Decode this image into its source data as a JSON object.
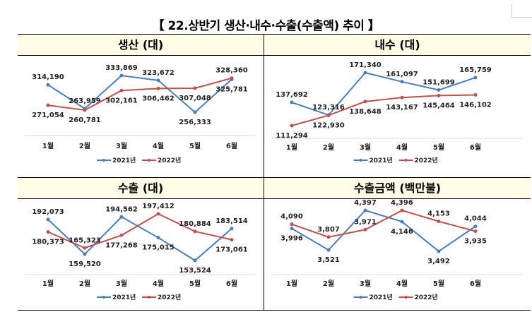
{
  "title": "【 22.상반기 생산·내수·수출(수출액) 추이 】",
  "colors": {
    "header_bg": "#fffde6",
    "series_2021": "#4a7ebb",
    "series_2022": "#c0504d"
  },
  "chart_data": [
    {
      "type": "line",
      "title": "생산 (대)",
      "categories": [
        "1월",
        "2월",
        "3월",
        "4월",
        "5월",
        "6월"
      ],
      "series": [
        {
          "name": "2021년",
          "values": [
            314190,
            263959,
            333869,
            323672,
            256333,
            325781
          ],
          "labels": [
            "314,190",
            "263,959",
            "333,869",
            "323,672",
            "256,333",
            "325,781"
          ]
        },
        {
          "name": "2022년",
          "values": [
            271054,
            260781,
            302161,
            306462,
            307048,
            328360
          ],
          "labels": [
            "271,054",
            "260,781",
            "302,161",
            "306,462",
            "307,048",
            "328,360"
          ]
        }
      ],
      "legend": "bottom",
      "grid": false
    },
    {
      "type": "line",
      "title": "내수 (대)",
      "categories": [
        "1월",
        "2월",
        "3월",
        "4월",
        "5월",
        "6월"
      ],
      "series": [
        {
          "name": "2021년",
          "values": [
            137692,
            123316,
            171340,
            161097,
            151699,
            165759
          ],
          "labels": [
            "137,692",
            "123,316",
            "171,340",
            "161,097",
            "151,699",
            "165,759"
          ]
        },
        {
          "name": "2022년",
          "values": [
            111294,
            122930,
            138648,
            143167,
            145464,
            146102
          ],
          "labels": [
            "111,294",
            "122,930",
            "138,648",
            "143,167",
            "145,464",
            "146,102"
          ]
        }
      ],
      "legend": "bottom",
      "grid": false
    },
    {
      "type": "line",
      "title": "수출 (대)",
      "categories": [
        "1월",
        "2월",
        "3월",
        "4월",
        "5월",
        "6월"
      ],
      "series": [
        {
          "name": "2021년",
          "values": [
            192073,
            159520,
            194562,
            175015,
            153524,
            183514
          ],
          "labels": [
            "192,073",
            "159,520",
            "194,562",
            "175,015",
            "153,524",
            "183,514"
          ]
        },
        {
          "name": "2022년",
          "values": [
            180373,
            165323,
            177268,
            197412,
            180884,
            173061
          ],
          "labels": [
            "180,373",
            "165,323",
            "177,268",
            "197,412",
            "180,884",
            "173,061"
          ]
        }
      ],
      "legend": "bottom",
      "grid": false
    },
    {
      "type": "line",
      "title": "수출금액 (백만불)",
      "categories": [
        "1월",
        "2월",
        "3월",
        "4월",
        "5월",
        "6월"
      ],
      "series": [
        {
          "name": "2021년",
          "values": [
            3996,
            3521,
            4397,
            4146,
            3492,
            4044
          ],
          "labels": [
            "3,996",
            "3,521",
            "4,397",
            "4,146",
            "3,492",
            "4,044"
          ]
        },
        {
          "name": "2022년",
          "values": [
            4090,
            3807,
            3971,
            4396,
            4153,
            3935
          ],
          "labels": [
            "4,090",
            "3,807",
            "3,971",
            "4,396",
            "4,153",
            "3,935"
          ]
        }
      ],
      "legend": "bottom",
      "grid": false
    }
  ]
}
